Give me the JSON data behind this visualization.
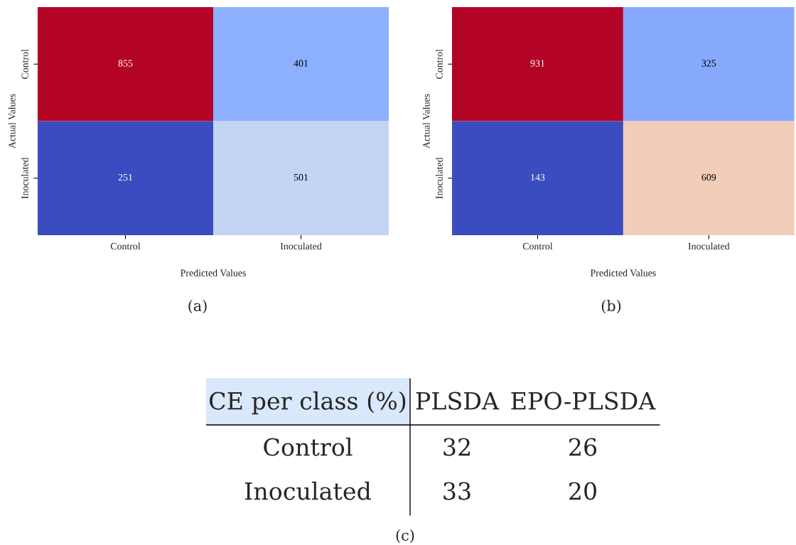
{
  "chart_data": [
    {
      "type": "heatmap",
      "categories": [
        "Control",
        "Inoculated"
      ],
      "y_categories": [
        "Control",
        "Inoculated"
      ],
      "cells": [
        [
          855,
          401
        ],
        [
          251,
          501
        ]
      ],
      "xlabel": "Predicted Values",
      "ylabel": "Actual Values",
      "data_labels": true,
      "annotations": [
        "(a)"
      ]
    },
    {
      "type": "heatmap",
      "categories": [
        "Control",
        "Inoculated"
      ],
      "y_categories": [
        "Control",
        "Inoculated"
      ],
      "cells": [
        [
          931,
          325
        ],
        [
          143,
          609
        ]
      ],
      "xlabel": "Predicted Values",
      "ylabel": "Actual Values",
      "data_labels": true,
      "annotations": [
        "(b)"
      ]
    },
    {
      "type": "other",
      "color": "#dae8fc",
      "annotations": [
        "CE per class (%)",
        "PLSDA",
        "EPO-PLSDA",
        "Control",
        "32",
        "26",
        "Inoculated",
        "33",
        "20",
        "(c)"
      ]
    }
  ]
}
